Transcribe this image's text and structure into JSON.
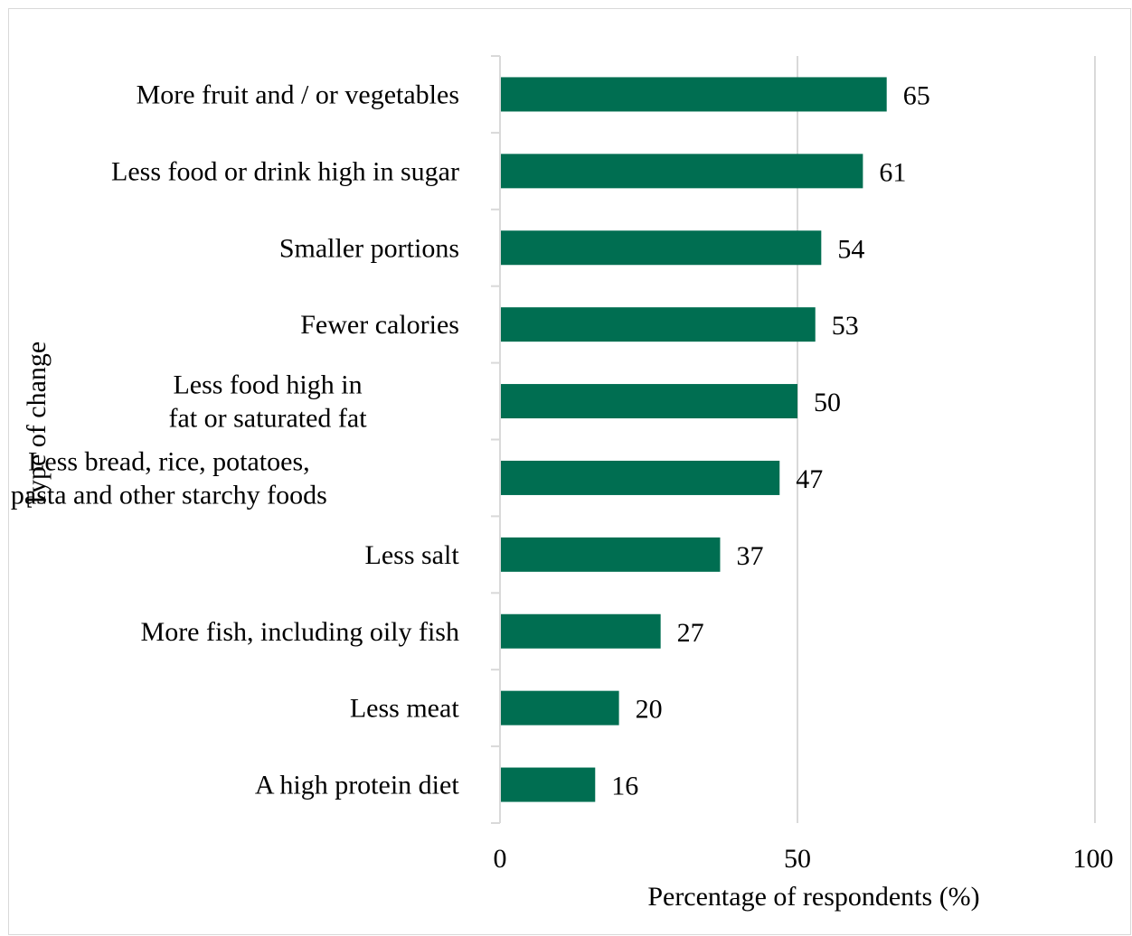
{
  "chart_data": {
    "type": "bar",
    "orientation": "horizontal",
    "categories": [
      [
        "More fruit and / or vegetables"
      ],
      [
        "Less food or drink high in sugar"
      ],
      [
        "Smaller portions"
      ],
      [
        "Fewer calories"
      ],
      [
        "Less food high in",
        "fat or saturated fat"
      ],
      [
        "Less bread, rice, potatoes,",
        "pasta and other starchy foods"
      ],
      [
        "Less salt"
      ],
      [
        "More fish, including oily fish"
      ],
      [
        "Less meat"
      ],
      [
        "A high protein diet"
      ]
    ],
    "values": [
      65,
      61,
      54,
      53,
      50,
      47,
      37,
      27,
      20,
      16
    ],
    "data_labels": [
      "65",
      "61",
      "54",
      "53",
      "50",
      "47",
      "37",
      "27",
      "20",
      "16"
    ],
    "xlabel": "Percentage of respondents (%)",
    "ylabel": "Type of change",
    "xlim": [
      0,
      100
    ],
    "xticks": [
      0,
      50,
      100
    ],
    "xtick_labels": [
      "0",
      "50",
      "100"
    ],
    "grid": "vertical",
    "bar_color": "#006e51",
    "grid_color": "#d9d9d9"
  }
}
